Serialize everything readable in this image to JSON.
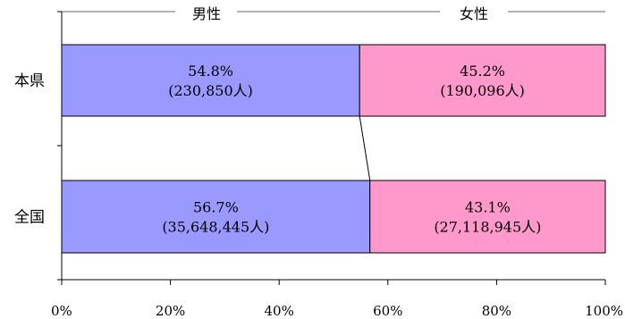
{
  "chart_data": {
    "type": "bar",
    "stacked": true,
    "orientation": "horizontal",
    "categories": [
      "本県",
      "全国"
    ],
    "series": [
      {
        "name": "男性",
        "values": [
          54.8,
          56.7
        ],
        "labels": [
          "54.8%",
          "56.7%"
        ],
        "counts": [
          "(230,850人)",
          "(35,648,445人)"
        ],
        "color": "#9999ff"
      },
      {
        "name": "女性",
        "values": [
          45.2,
          43.1
        ],
        "labels": [
          "45.2%",
          "43.1%"
        ],
        "counts": [
          "(190,096人)",
          "(27,118,945人)"
        ],
        "color": "#ff99cc"
      }
    ],
    "xlim": [
      0,
      100
    ],
    "xticks": [
      "0%",
      "20%",
      "40%",
      "60%",
      "80%",
      "100%"
    ],
    "series_lines": true,
    "legend_position": "top"
  }
}
